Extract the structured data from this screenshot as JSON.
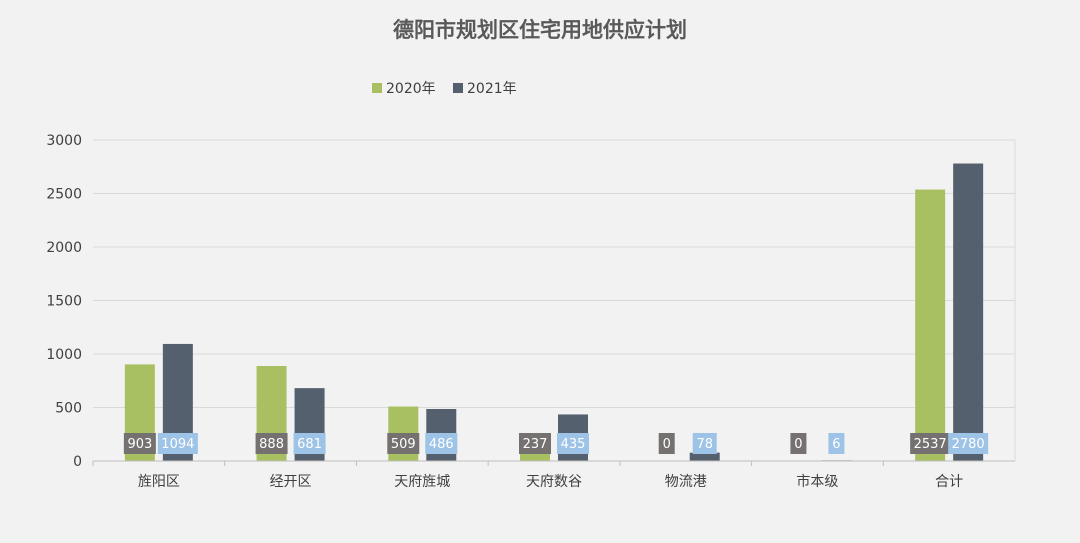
{
  "chart_data": {
    "type": "bar",
    "title": "德阳市规划区住宅用地供应计划",
    "categories": [
      "旌阳区",
      "经开区",
      "天府旌城",
      "天府数谷",
      "物流港",
      "市本级",
      "合计"
    ],
    "series": [
      {
        "name": "2020年",
        "color": "#a9c062",
        "label_color": "#767171",
        "values": [
          903,
          888,
          509,
          237,
          0,
          0,
          2537
        ]
      },
      {
        "name": "2021年",
        "color": "#55606e",
        "label_color": "#9dc3e6",
        "values": [
          1094,
          681,
          486,
          435,
          78,
          6,
          2780
        ]
      }
    ],
    "yticks": [
      "0",
      "500",
      "1000",
      "1500",
      "2000",
      "2500",
      "3000"
    ],
    "ylim": [
      0,
      3000
    ],
    "legend_position": "top-center",
    "grid": true,
    "background": "#f2f2f2",
    "grid_color": "#d9d9d9"
  }
}
